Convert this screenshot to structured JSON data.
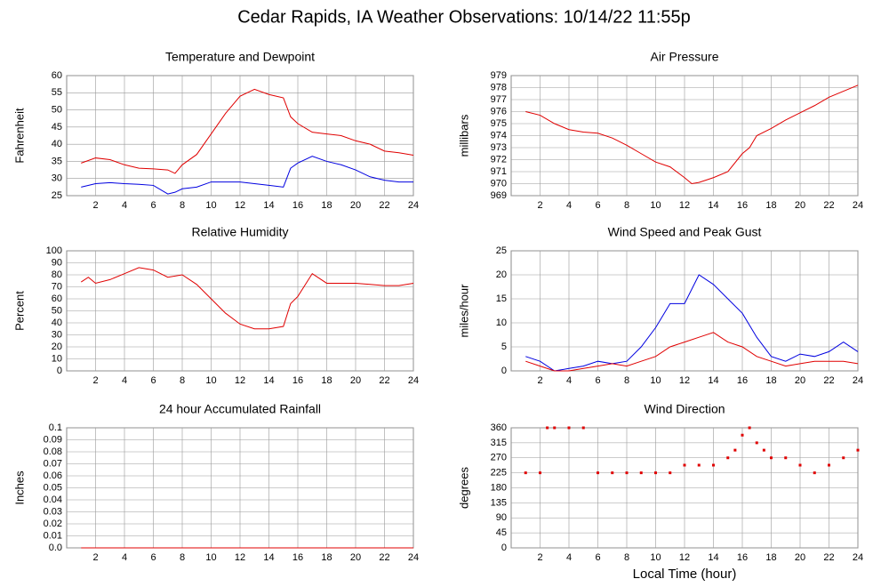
{
  "title": "Cedar Rapids, IA Weather Observations: 10/14/22 11:55p",
  "chart_data": [
    {
      "type": "line",
      "title": "Temperature and Dewpoint",
      "ylabel": "Fahrenheit",
      "x": [
        1,
        2,
        3,
        4,
        5,
        6,
        7,
        7.5,
        8,
        9,
        10,
        11,
        12,
        13,
        14,
        15,
        15.5,
        16,
        17,
        18,
        19,
        20,
        21,
        22,
        23,
        24
      ],
      "series": [
        {
          "name": "Temperature",
          "color": "#e00000",
          "values": [
            34.5,
            36,
            35.5,
            34,
            33,
            32.8,
            32.5,
            31.5,
            34,
            37,
            43,
            49,
            54,
            56,
            54.5,
            53.5,
            48,
            46,
            43.5,
            43,
            42.5,
            41,
            40,
            38,
            37.5,
            36.8
          ]
        },
        {
          "name": "Dewpoint",
          "color": "#0000e0",
          "values": [
            27.5,
            28.5,
            28.8,
            28.5,
            28.3,
            28,
            25.5,
            26,
            27,
            27.5,
            29,
            29,
            29,
            28.5,
            28,
            27.5,
            33,
            34.5,
            36.5,
            35,
            34,
            32.5,
            30.5,
            29.5,
            29,
            29
          ]
        }
      ],
      "xlim": [
        0,
        24
      ],
      "xticks": [
        2,
        4,
        6,
        8,
        10,
        12,
        14,
        16,
        18,
        20,
        22,
        24
      ],
      "ylim": [
        25,
        60
      ],
      "yticks": [
        25,
        30,
        35,
        40,
        45,
        50,
        55,
        60
      ],
      "grid": true
    },
    {
      "type": "line",
      "title": "Air Pressure",
      "ylabel": "millibars",
      "x": [
        1,
        2,
        3,
        4,
        5,
        6,
        7,
        8,
        9,
        10,
        11,
        12,
        12.5,
        13,
        14,
        15,
        16,
        16.5,
        17,
        18,
        19,
        20,
        21,
        22,
        23,
        24
      ],
      "series": [
        {
          "name": "Pressure",
          "color": "#e00000",
          "values": [
            976,
            975.7,
            975,
            974.5,
            974.3,
            974.2,
            973.8,
            973.2,
            972.5,
            971.8,
            971.4,
            970.5,
            970,
            970.1,
            970.5,
            971,
            972.5,
            973,
            974,
            974.6,
            975.3,
            975.9,
            976.5,
            977.2,
            977.7,
            978.2
          ]
        }
      ],
      "xlim": [
        0,
        24
      ],
      "xticks": [
        2,
        4,
        6,
        8,
        10,
        12,
        14,
        16,
        18,
        20,
        22,
        24
      ],
      "ylim": [
        969,
        979
      ],
      "yticks": [
        969,
        970,
        971,
        972,
        973,
        974,
        975,
        976,
        977,
        978,
        979
      ],
      "grid": true
    },
    {
      "type": "line",
      "title": "Relative Humidity",
      "ylabel": "Percent",
      "x": [
        1,
        1.5,
        2,
        3,
        4,
        5,
        6,
        7,
        8,
        9,
        10,
        11,
        12,
        13,
        14,
        15,
        15.5,
        16,
        17,
        18,
        19,
        20,
        21,
        22,
        23,
        24
      ],
      "series": [
        {
          "name": "Relative Humidity",
          "color": "#e00000",
          "values": [
            74,
            78,
            73,
            76,
            81,
            86,
            84,
            78,
            80,
            72,
            60,
            48,
            39,
            35,
            35,
            37,
            56,
            62,
            81,
            73,
            73,
            73,
            72,
            71,
            71,
            73
          ]
        }
      ],
      "xlim": [
        0,
        24
      ],
      "xticks": [
        2,
        4,
        6,
        8,
        10,
        12,
        14,
        16,
        18,
        20,
        22,
        24
      ],
      "ylim": [
        0,
        100
      ],
      "yticks": [
        0,
        10,
        20,
        30,
        40,
        50,
        60,
        70,
        80,
        90,
        100
      ],
      "grid": true
    },
    {
      "type": "line",
      "title": "Wind Speed and Peak Gust",
      "ylabel": "miles/hour",
      "x": [
        1,
        2,
        3,
        4,
        5,
        6,
        7,
        8,
        9,
        10,
        11,
        12,
        13,
        14,
        15,
        16,
        17,
        18,
        19,
        20,
        21,
        22,
        23,
        24
      ],
      "series": [
        {
          "name": "Peak Gust",
          "color": "#0000e0",
          "values": [
            3,
            2,
            0,
            0.5,
            1,
            2,
            1.5,
            2,
            5,
            9,
            14,
            14,
            20,
            18,
            15,
            12,
            7,
            3,
            2,
            3.5,
            3,
            4,
            6,
            4
          ]
        },
        {
          "name": "Wind Speed",
          "color": "#e00000",
          "values": [
            2,
            1,
            0,
            0,
            0.5,
            1,
            1.5,
            1,
            2,
            3,
            5,
            6,
            7,
            8,
            6,
            5,
            3,
            2,
            1,
            1.5,
            2,
            2,
            2,
            1.5
          ]
        }
      ],
      "xlim": [
        0,
        24
      ],
      "xticks": [
        2,
        4,
        6,
        8,
        10,
        12,
        14,
        16,
        18,
        20,
        22,
        24
      ],
      "ylim": [
        0,
        25
      ],
      "yticks": [
        0,
        5,
        10,
        15,
        20,
        25
      ],
      "grid": true
    },
    {
      "type": "line",
      "title": "24 hour Accumulated Rainfall",
      "ylabel": "Inches",
      "x": [
        1,
        24
      ],
      "series": [
        {
          "name": "Rainfall",
          "color": "#e00000",
          "values": [
            0,
            0
          ]
        }
      ],
      "xlim": [
        0,
        24
      ],
      "xticks": [
        2,
        4,
        6,
        8,
        10,
        12,
        14,
        16,
        18,
        20,
        22,
        24
      ],
      "ylim": [
        0,
        0.1
      ],
      "yticks": [
        {
          "value": 0,
          "label": "0.0"
        },
        0.01,
        0.02,
        0.03,
        0.04,
        0.05,
        0.06,
        0.07,
        0.08,
        0.09,
        0.1
      ],
      "grid": true
    },
    {
      "type": "scatter",
      "title": "Wind Direction",
      "ylabel": "degrees",
      "xlabel": "Local Time (hour)",
      "x": [
        1,
        2,
        2.5,
        3,
        4,
        5,
        6,
        7,
        8,
        9,
        10,
        11,
        12,
        13,
        14,
        15,
        15.5,
        16,
        16.5,
        17,
        17.5,
        18,
        19,
        20,
        21,
        22,
        23,
        24
      ],
      "series": [
        {
          "name": "Wind Direction",
          "color": "#e00000",
          "values": [
            225,
            225,
            360,
            360,
            360,
            360,
            225,
            225,
            225,
            225,
            225,
            225,
            248,
            248,
            248,
            270,
            293,
            338,
            360,
            315,
            293,
            270,
            270,
            248,
            225,
            248,
            270,
            293
          ]
        }
      ],
      "xlim": [
        0,
        24
      ],
      "xticks": [
        2,
        4,
        6,
        8,
        10,
        12,
        14,
        16,
        18,
        20,
        22,
        24
      ],
      "ylim": [
        0,
        360
      ],
      "yticks": [
        0,
        45,
        90,
        135,
        180,
        225,
        270,
        315,
        360
      ],
      "grid": true
    }
  ]
}
